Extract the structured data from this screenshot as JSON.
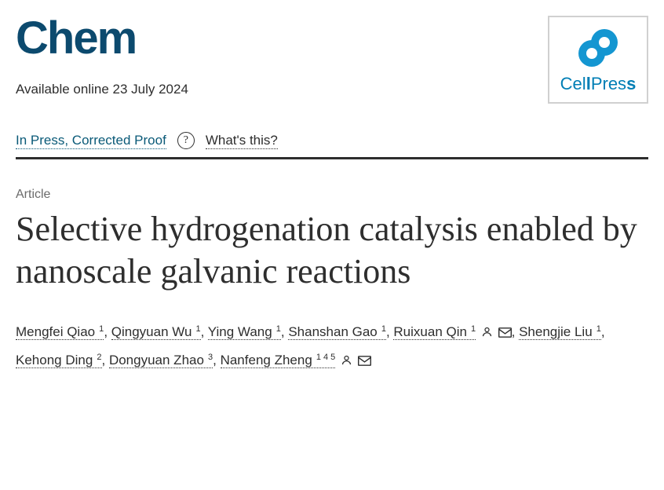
{
  "journal": {
    "name": "Chem",
    "logo_color": "#0c4a6e",
    "logo_fontsize": 58
  },
  "publisher": {
    "name_part1": "Cel",
    "name_bold1": "l",
    "name_part2": "Pres",
    "name_bold2": "s",
    "icon_color": "#1496d1",
    "text_color": "#007eb5"
  },
  "availability": "Available online 23 July 2024",
  "status": {
    "label": "In Press, Corrected Proof",
    "help_glyph": "?",
    "whats_this": "What's this?"
  },
  "article_type": "Article",
  "title": "Selective hydrogenation catalysis enabled by nanoscale galvanic reactions",
  "authors": [
    {
      "name": "Mengfei Qiao",
      "affil": "1",
      "person": false,
      "mail": false
    },
    {
      "name": "Qingyuan Wu",
      "affil": "1",
      "person": false,
      "mail": false
    },
    {
      "name": "Ying Wang",
      "affil": "1",
      "person": false,
      "mail": false
    },
    {
      "name": "Shanshan Gao",
      "affil": "1",
      "person": false,
      "mail": false
    },
    {
      "name": "Ruixuan Qin",
      "affil": "1",
      "person": true,
      "mail": true
    },
    {
      "name": "Shengjie Liu",
      "affil": "1",
      "person": false,
      "mail": false
    },
    {
      "name": "Kehong Ding",
      "affil": "2",
      "person": false,
      "mail": false
    },
    {
      "name": "Dongyuan Zhao",
      "affil": "3",
      "person": false,
      "mail": false
    },
    {
      "name": "Nanfeng Zheng",
      "affil": "1 4 5",
      "person": true,
      "mail": true
    }
  ],
  "colors": {
    "text": "#2e2e2e",
    "link": "#0a5a78",
    "muted": "#6b6b6b",
    "background": "#ffffff"
  }
}
